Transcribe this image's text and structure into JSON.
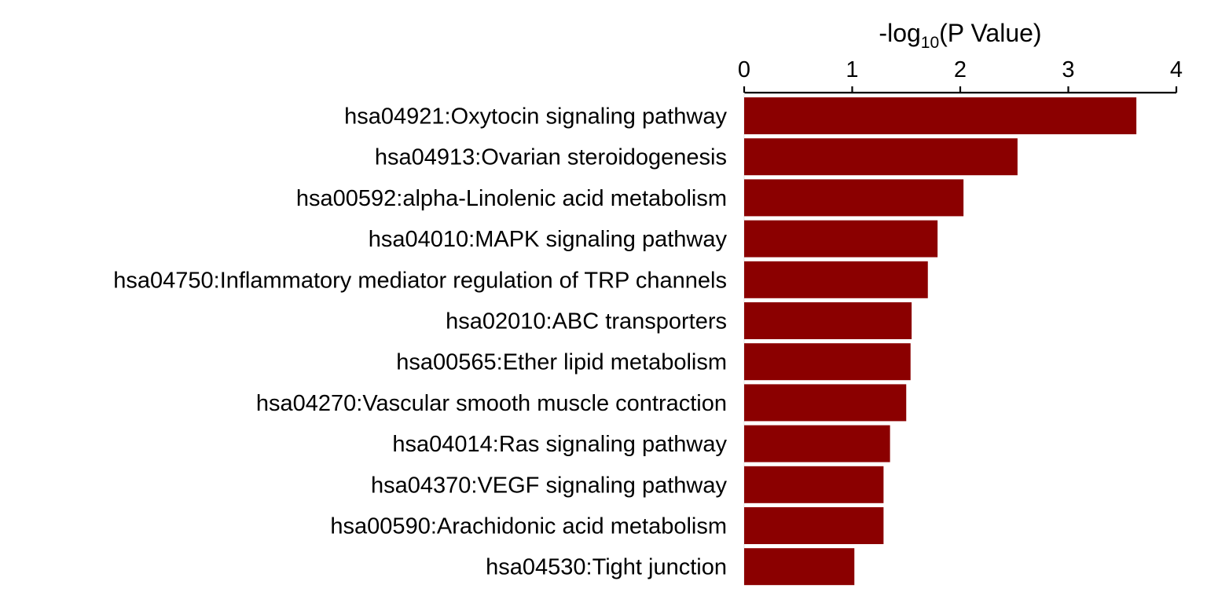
{
  "chart_data": {
    "type": "bar",
    "orientation": "horizontal",
    "axis_position": "top",
    "grid": false,
    "bar_color": "#8b0000",
    "xlabel": {
      "prefix": "-log",
      "subscript": "10",
      "suffix": "(P Value)"
    },
    "xlim": [
      0,
      4
    ],
    "xticks": [
      "0",
      "1",
      "2",
      "3",
      "4"
    ],
    "categories": [
      "hsa04921:Oxytocin signaling pathway",
      "hsa04913:Ovarian steroidogenesis",
      "hsa00592:alpha-Linolenic acid metabolism",
      "hsa04010:MAPK signaling pathway",
      "hsa04750:Inflammatory mediator regulation of TRP channels",
      "hsa02010:ABC transporters",
      "hsa00565:Ether lipid metabolism",
      "hsa04270:Vascular smooth muscle contraction",
      "hsa04014:Ras signaling pathway",
      "hsa04370:VEGF signaling pathway",
      "hsa00590:Arachidonic acid metabolism",
      "hsa04530:Tight junction"
    ],
    "values": [
      3.63,
      2.53,
      2.03,
      1.79,
      1.7,
      1.55,
      1.54,
      1.5,
      1.35,
      1.29,
      1.29,
      1.02
    ]
  }
}
